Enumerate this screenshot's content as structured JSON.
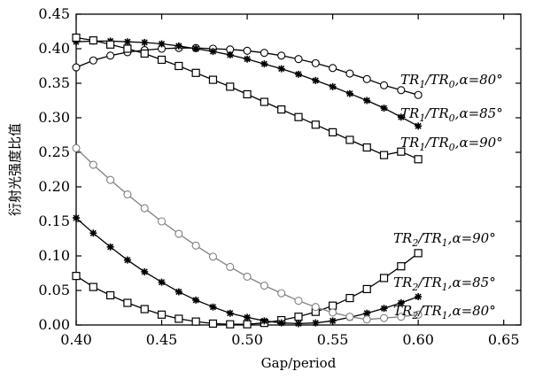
{
  "chart_data": {
    "type": "line",
    "xlabel": "Gap/period",
    "ylabel": "衍射光强度比值",
    "xlim": [
      0.4,
      0.66
    ],
    "ylim": [
      0.0,
      0.45
    ],
    "x_ticks": [
      0.4,
      0.45,
      0.5,
      0.55,
      0.6,
      0.65
    ],
    "x_tick_labels": [
      "0.40",
      "0.45",
      "0.50",
      "0.55",
      "0.60",
      "0.65"
    ],
    "y_ticks": [
      0.0,
      0.05,
      0.1,
      0.15,
      0.2,
      0.25,
      0.3,
      0.35,
      0.4,
      0.45
    ],
    "y_tick_labels": [
      "0.00",
      "0.05",
      "0.10",
      "0.15",
      "0.20",
      "0.25",
      "0.30",
      "0.35",
      "0.40",
      "0.45"
    ],
    "x": [
      0.4,
      0.41,
      0.42,
      0.43,
      0.44,
      0.45,
      0.46,
      0.47,
      0.48,
      0.49,
      0.5,
      0.51,
      0.52,
      0.53,
      0.54,
      0.55,
      0.56,
      0.57,
      0.58,
      0.59,
      0.6
    ],
    "series": [
      {
        "label": "TR1/TR0,α=80°",
        "marker": "circle",
        "color": "#000000",
        "values": [
          0.373,
          0.383,
          0.39,
          0.395,
          0.398,
          0.4,
          0.401,
          0.401,
          0.4,
          0.399,
          0.397,
          0.394,
          0.39,
          0.385,
          0.379,
          0.372,
          0.364,
          0.356,
          0.347,
          0.34,
          0.333
        ]
      },
      {
        "label": "TR1/TR0,α=85°",
        "marker": "star",
        "color": "#000000",
        "values": [
          0.41,
          0.411,
          0.411,
          0.41,
          0.409,
          0.407,
          0.404,
          0.4,
          0.396,
          0.391,
          0.385,
          0.378,
          0.371,
          0.363,
          0.354,
          0.345,
          0.335,
          0.325,
          0.314,
          0.301,
          0.288
        ]
      },
      {
        "label": "TR1/TR0,α=90°",
        "marker": "square",
        "color": "#000000",
        "values": [
          0.416,
          0.412,
          0.406,
          0.4,
          0.393,
          0.384,
          0.375,
          0.365,
          0.355,
          0.345,
          0.334,
          0.323,
          0.312,
          0.301,
          0.29,
          0.279,
          0.268,
          0.257,
          0.246,
          0.251,
          0.24
        ]
      },
      {
        "label": "TR2/TR1,α=90°",
        "marker": "square",
        "color": "#000000",
        "values": [
          0.071,
          0.055,
          0.043,
          0.032,
          0.023,
          0.015,
          0.009,
          0.005,
          0.002,
          0.001,
          0.001,
          0.003,
          0.007,
          0.012,
          0.019,
          0.028,
          0.039,
          0.052,
          0.068,
          0.085,
          0.104
        ]
      },
      {
        "label": "TR2/TR1,α=85°",
        "marker": "star",
        "color": "#000000",
        "values": [
          0.155,
          0.133,
          0.113,
          0.094,
          0.077,
          0.062,
          0.048,
          0.036,
          0.026,
          0.017,
          0.011,
          0.006,
          0.003,
          0.002,
          0.003,
          0.006,
          0.011,
          0.017,
          0.024,
          0.032,
          0.041
        ]
      },
      {
        "label": "TR2/TR1,α=80°",
        "marker": "circle",
        "color": "#808080",
        "values": [
          0.256,
          0.232,
          0.21,
          0.189,
          0.169,
          0.15,
          0.132,
          0.115,
          0.099,
          0.084,
          0.07,
          0.057,
          0.046,
          0.035,
          0.026,
          0.018,
          0.012,
          0.008,
          0.01,
          0.012,
          0.015
        ]
      }
    ],
    "series_labels": [
      {
        "ref": 0,
        "main": "TR",
        "sub1": "1",
        "mid": "/TR",
        "sub2": "0",
        "tail": ",α=80°"
      },
      {
        "ref": 1,
        "main": "TR",
        "sub1": "1",
        "mid": "/TR",
        "sub2": "0",
        "tail": ",α=85°"
      },
      {
        "ref": 2,
        "main": "TR",
        "sub1": "1",
        "mid": "/TR",
        "sub2": "0",
        "tail": ",α=90°"
      },
      {
        "ref": 3,
        "main": "TR",
        "sub1": "2",
        "mid": "/TR",
        "sub2": "1",
        "tail": ",α=90°"
      },
      {
        "ref": 4,
        "main": "TR",
        "sub1": "2",
        "mid": "/TR",
        "sub2": "1",
        "tail": ",α=85°"
      },
      {
        "ref": 5,
        "main": "TR",
        "sub1": "2",
        "mid": "/TR",
        "sub2": "1",
        "tail": ",α=80°"
      }
    ],
    "grid": false,
    "legend": "inline labels right"
  }
}
